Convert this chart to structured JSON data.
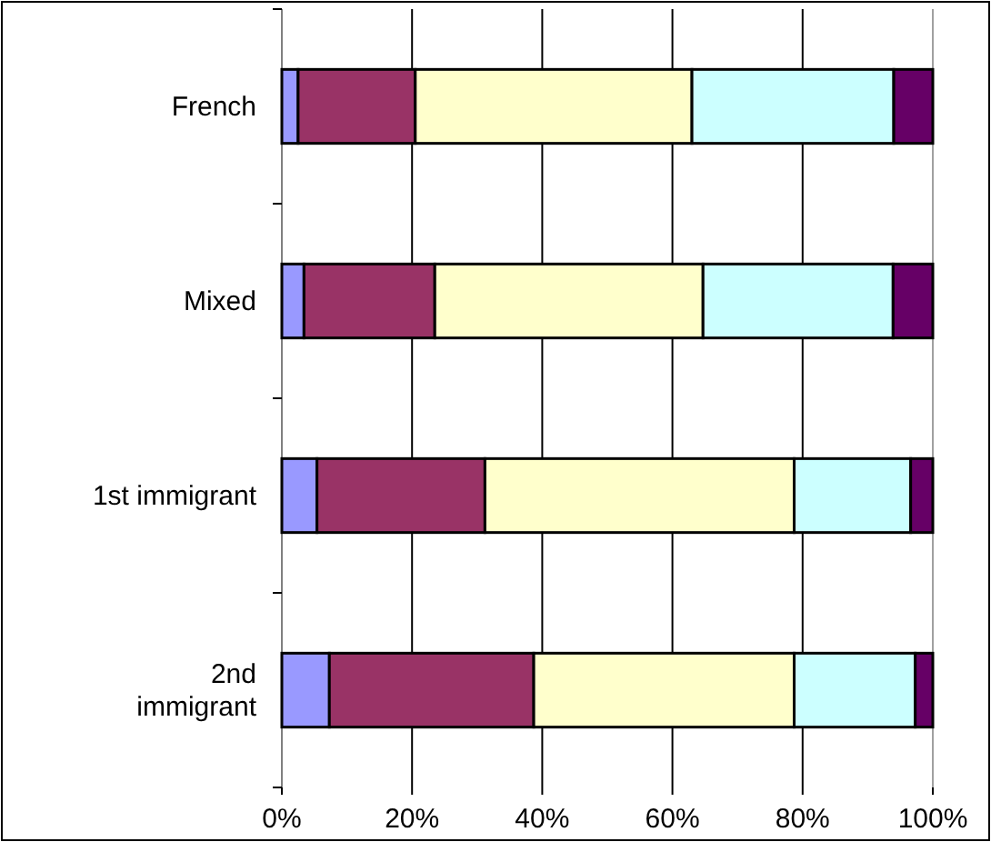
{
  "chart_data": {
    "type": "bar",
    "orientation": "horizontal",
    "stacked": true,
    "categories": [
      "French",
      "Mixed",
      "1st immigrant",
      "2nd\nimmigrant"
    ],
    "series": [
      {
        "color": "#9999ff",
        "values": [
          2.5,
          3.4,
          5.4,
          7.3
        ]
      },
      {
        "color": "#993366",
        "values": [
          18,
          20.1,
          25.8,
          31.4
        ]
      },
      {
        "color": "#ffffcc",
        "values": [
          42.5,
          41.2,
          47.5,
          40
        ]
      },
      {
        "color": "#ccffff",
        "values": [
          31,
          29.2,
          17.9,
          18.6
        ]
      },
      {
        "color": "#660066",
        "values": [
          6,
          6.1,
          3.4,
          2.7
        ]
      }
    ],
    "xlim": [
      0,
      100
    ],
    "xticks": [
      {
        "value": 0,
        "label": "0%"
      },
      {
        "value": 20,
        "label": "20%"
      },
      {
        "value": 40,
        "label": "40%"
      },
      {
        "value": 60,
        "label": "60%"
      },
      {
        "value": 80,
        "label": "80%"
      },
      {
        "value": 100,
        "label": "100%"
      }
    ],
    "grid": "x"
  }
}
